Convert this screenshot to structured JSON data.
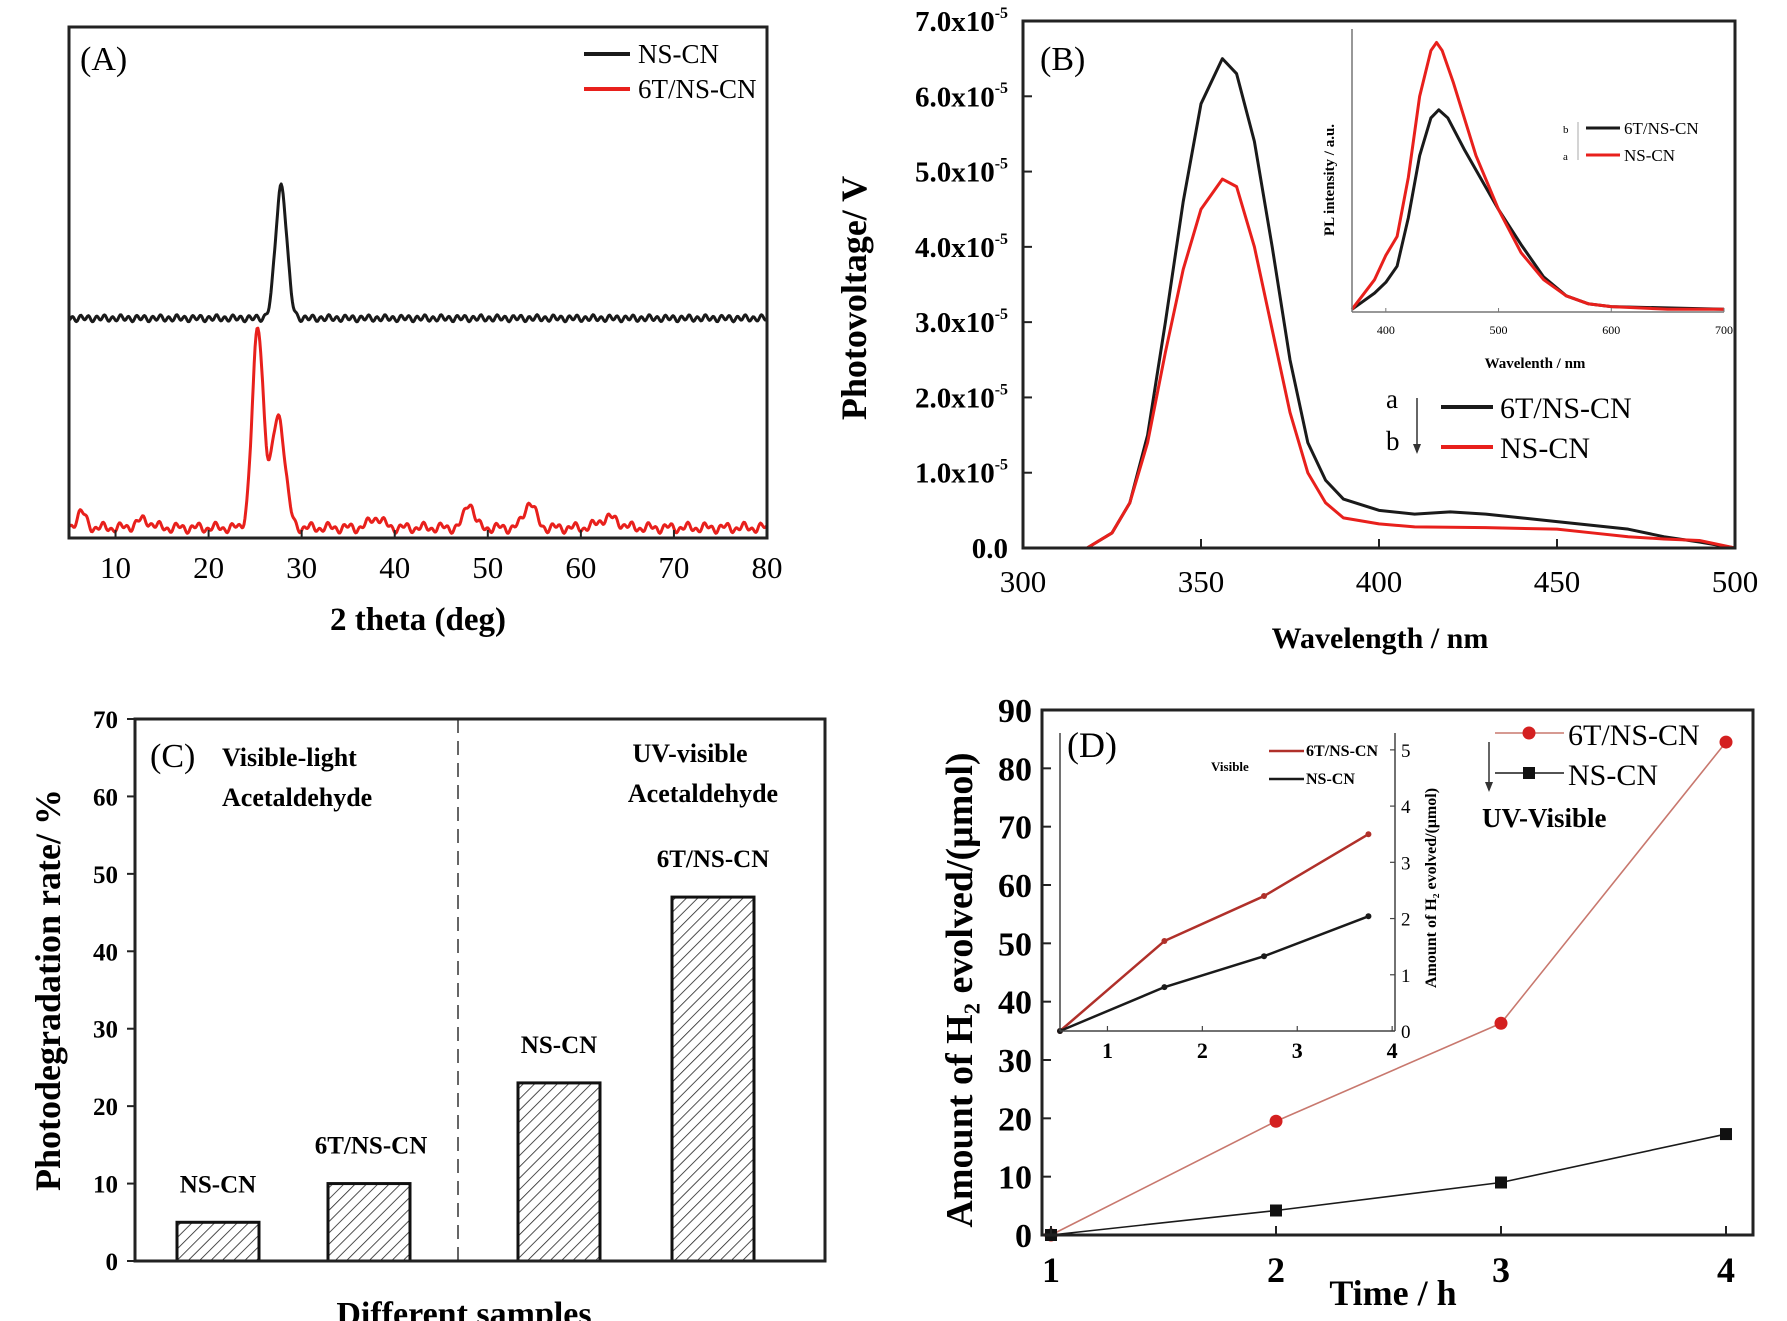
{
  "colors": {
    "black": "#1a1a1a",
    "red": "#e8201c",
    "dark_red": "#b0302a",
    "rose": "#c8786e"
  },
  "chart_data": [
    {
      "panel": "(A)",
      "type": "line",
      "xlabel": "2 theta (deg)",
      "ylabel": "",
      "xlim": [
        5,
        80
      ],
      "xticks": [
        10,
        20,
        30,
        40,
        50,
        60,
        70,
        80
      ],
      "y_axis_shown": false,
      "legend_position": "top-right",
      "series": [
        {
          "name": "NS-CN",
          "color": "#1a1a1a",
          "baseline": 43,
          "peaks": [
            {
              "x": 27.8,
              "height": 26,
              "width": 0.6
            }
          ]
        },
        {
          "name": "6T/NS-CN",
          "color": "#e8201c",
          "baseline": 2,
          "peaks": [
            {
              "x": 25.3,
              "height": 39,
              "width": 0.6
            },
            {
              "x": 27.5,
              "height": 22,
              "width": 0.7
            },
            {
              "x": 6.3,
              "height": 3,
              "width": 0.5
            },
            {
              "x": 13,
              "height": 1.5,
              "width": 0.8
            },
            {
              "x": 38,
              "height": 2,
              "width": 0.7
            },
            {
              "x": 48,
              "height": 5,
              "width": 0.5
            },
            {
              "x": 54.5,
              "height": 5,
              "width": 0.6
            },
            {
              "x": 63,
              "height": 2,
              "width": 1
            }
          ]
        }
      ]
    },
    {
      "panel": "(B)",
      "type": "line",
      "xlabel": "Wavelength / nm",
      "ylabel": "Photovoltage/ V",
      "xlim": [
        300,
        500
      ],
      "ylim": [
        0,
        7e-05
      ],
      "xticks": [
        300,
        350,
        400,
        450,
        500
      ],
      "yticks": [
        0,
        1e-05,
        2e-05,
        3e-05,
        4e-05,
        5e-05,
        6e-05,
        7e-05
      ],
      "ytick_labels": [
        "0.0",
        "1.0x10^-5",
        "2.0x10^-5",
        "3.0x10^-5",
        "4.0x10^-5",
        "5.0x10^-5",
        "6.0x10^-5",
        "7.0x10^-5"
      ],
      "legend_position": "center-right",
      "legend_arrow_labels": [
        "a",
        "b"
      ],
      "series": [
        {
          "name": "6T/NS-CN",
          "color": "#1a1a1a",
          "points": [
            [
              300,
              0
            ],
            [
              318,
              0
            ],
            [
              325,
              2e-06
            ],
            [
              330,
              6e-06
            ],
            [
              335,
              1.5e-05
            ],
            [
              340,
              3e-05
            ],
            [
              345,
              4.6e-05
            ],
            [
              350,
              5.9e-05
            ],
            [
              356,
              6.5e-05
            ],
            [
              360,
              6.3e-05
            ],
            [
              365,
              5.4e-05
            ],
            [
              370,
              4e-05
            ],
            [
              375,
              2.5e-05
            ],
            [
              380,
              1.4e-05
            ],
            [
              385,
              9e-06
            ],
            [
              390,
              6.5e-06
            ],
            [
              400,
              5e-06
            ],
            [
              410,
              4.5e-06
            ],
            [
              420,
              4.8e-06
            ],
            [
              430,
              4.5e-06
            ],
            [
              440,
              4e-06
            ],
            [
              450,
              3.5e-06
            ],
            [
              460,
              3e-06
            ],
            [
              470,
              2.5e-06
            ],
            [
              480,
              1.5e-06
            ],
            [
              490,
              8e-07
            ],
            [
              500,
              0
            ]
          ]
        },
        {
          "name": "NS-CN",
          "color": "#e8201c",
          "points": [
            [
              300,
              0
            ],
            [
              318,
              0
            ],
            [
              325,
              2e-06
            ],
            [
              330,
              6e-06
            ],
            [
              335,
              1.4e-05
            ],
            [
              340,
              2.6e-05
            ],
            [
              345,
              3.7e-05
            ],
            [
              350,
              4.5e-05
            ],
            [
              356,
              4.9e-05
            ],
            [
              360,
              4.8e-05
            ],
            [
              365,
              4e-05
            ],
            [
              370,
              2.9e-05
            ],
            [
              375,
              1.8e-05
            ],
            [
              380,
              1e-05
            ],
            [
              385,
              6e-06
            ],
            [
              390,
              4e-06
            ],
            [
              400,
              3.2e-06
            ],
            [
              410,
              2.8e-06
            ],
            [
              430,
              2.7e-06
            ],
            [
              450,
              2.5e-06
            ],
            [
              460,
              2e-06
            ],
            [
              470,
              1.5e-06
            ],
            [
              480,
              1.2e-06
            ],
            [
              490,
              1e-06
            ],
            [
              500,
              0
            ]
          ]
        }
      ],
      "inset": {
        "xlabel": "Wavelenth / nm",
        "ylabel": "PL intensity  / a.u.",
        "xlim": [
          370,
          700
        ],
        "ylim": [
          0,
          105
        ],
        "xticks": [
          400,
          500,
          600,
          700
        ],
        "legend_arrow_labels": [
          "b",
          "a"
        ],
        "series": [
          {
            "name": "6T/NS-CN",
            "color": "#1a1a1a",
            "points": [
              [
                370,
                1
              ],
              [
                390,
                7
              ],
              [
                400,
                11
              ],
              [
                410,
                17
              ],
              [
                420,
                35
              ],
              [
                430,
                58
              ],
              [
                440,
                72
              ],
              [
                447,
                75
              ],
              [
                455,
                72
              ],
              [
                470,
                60
              ],
              [
                500,
                38
              ],
              [
                520,
                25
              ],
              [
                540,
                13
              ],
              [
                560,
                6
              ],
              [
                580,
                3
              ],
              [
                600,
                2
              ],
              [
                700,
                1
              ]
            ]
          },
          {
            "name": "NS-CN",
            "color": "#e8201c",
            "points": [
              [
                370,
                1
              ],
              [
                390,
                12
              ],
              [
                400,
                21
              ],
              [
                410,
                28
              ],
              [
                420,
                50
              ],
              [
                430,
                80
              ],
              [
                440,
                97
              ],
              [
                445,
                100
              ],
              [
                450,
                97
              ],
              [
                460,
                85
              ],
              [
                480,
                58
              ],
              [
                500,
                38
              ],
              [
                520,
                22
              ],
              [
                540,
                12
              ],
              [
                560,
                6
              ],
              [
                580,
                3
              ],
              [
                600,
                2
              ],
              [
                650,
                1
              ],
              [
                700,
                1
              ]
            ]
          }
        ]
      }
    },
    {
      "panel": "(C)",
      "type": "bar",
      "xlabel": "Different samples",
      "ylabel": "Photodegradation rate/ %",
      "ylim": [
        0,
        70
      ],
      "yticks": [
        0,
        10,
        20,
        30,
        40,
        50,
        60,
        70
      ],
      "groups": [
        {
          "title": [
            "Visible-light",
            "Acetaldehyde"
          ],
          "bars": [
            {
              "label": "NS-CN",
              "value": 5
            },
            {
              "label": "6T/NS-CN",
              "value": 10
            }
          ]
        },
        {
          "title": [
            "UV-visible",
            "Acetaldehyde"
          ],
          "bars": [
            {
              "label": "NS-CN",
              "value": 23
            },
            {
              "label": "6T/NS-CN",
              "value": 47
            }
          ]
        }
      ],
      "bar_fill": "hatched"
    },
    {
      "panel": "(D)",
      "type": "line",
      "xlabel": "Time / h",
      "ylabel": "Amount of H₂ evolved/(μmol)",
      "xlim": [
        0.96,
        4.12
      ],
      "ylim": [
        0,
        90
      ],
      "xticks": [
        1,
        2,
        3,
        4
      ],
      "yticks": [
        0,
        10,
        20,
        30,
        40,
        50,
        60,
        70,
        80,
        90
      ],
      "legend_position": "top-right",
      "legend_note": "UV-Visible",
      "series": [
        {
          "name": "6T/NS-CN",
          "color": "#c8786e",
          "marker": "circle",
          "marker_color": "#d42020",
          "x": [
            1,
            2,
            3,
            4
          ],
          "y": [
            0,
            19.5,
            36.3,
            84.5
          ]
        },
        {
          "name": "NS-CN",
          "color": "#1a1a1a",
          "marker": "square",
          "marker_color": "#111111",
          "x": [
            1,
            2,
            3,
            4
          ],
          "y": [
            0,
            4.2,
            9.0,
            17.3
          ]
        }
      ],
      "inset": {
        "ylabel": "Amount of H₂ evolved/(μmol)",
        "legend_note": "Visible",
        "xlim": [
          0.5,
          4.03
        ],
        "ylim": [
          0,
          5.3
        ],
        "xticks": [
          1,
          2,
          3,
          4
        ],
        "yticks": [
          0,
          1,
          2,
          3,
          4,
          5
        ],
        "y_axis_side": "right",
        "series": [
          {
            "name": "6T/NS-CN",
            "color": "#b0302a",
            "x": [
              0.5,
              1.6,
              2.65,
              3.75
            ],
            "y": [
              0,
              1.6,
              2.4,
              3.5
            ]
          },
          {
            "name": "NS-CN",
            "color": "#1a1a1a",
            "x": [
              0.5,
              1.6,
              2.65,
              3.75
            ],
            "y": [
              0,
              0.78,
              1.33,
              2.04
            ]
          }
        ]
      }
    }
  ]
}
